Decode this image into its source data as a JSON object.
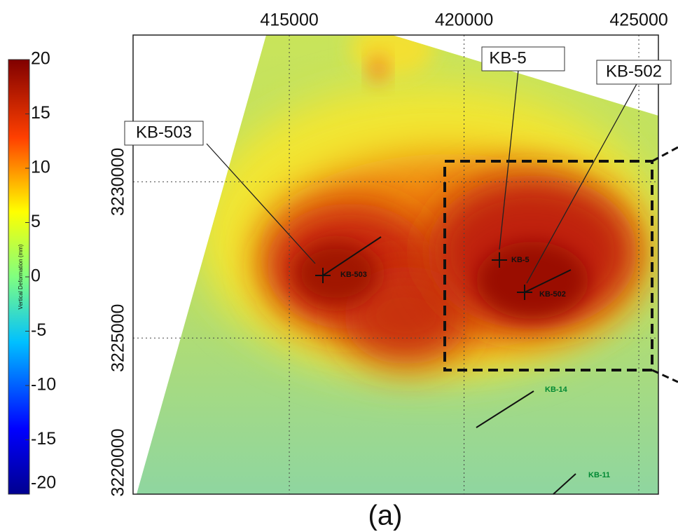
{
  "colorbar": {
    "label": "Vertical Deformation (mm)",
    "lim": [
      -20,
      20
    ],
    "ticks": [
      20,
      15,
      10,
      5,
      0,
      -5,
      -10,
      -15,
      -20
    ]
  },
  "axes": {
    "xlim": [
      410530,
      425560
    ],
    "xticks": [
      415000,
      420000,
      425000
    ],
    "ylim": [
      3220000,
      3234700
    ],
    "yticks": [
      3230000,
      3225000,
      3220000
    ]
  },
  "callouts": [
    "KB-503",
    "KB-5",
    "KB-502"
  ],
  "well_labels": [
    "KB-503",
    "KB-5",
    "KB-502",
    "KB-14",
    "KB-11"
  ],
  "caption": "(a)"
}
